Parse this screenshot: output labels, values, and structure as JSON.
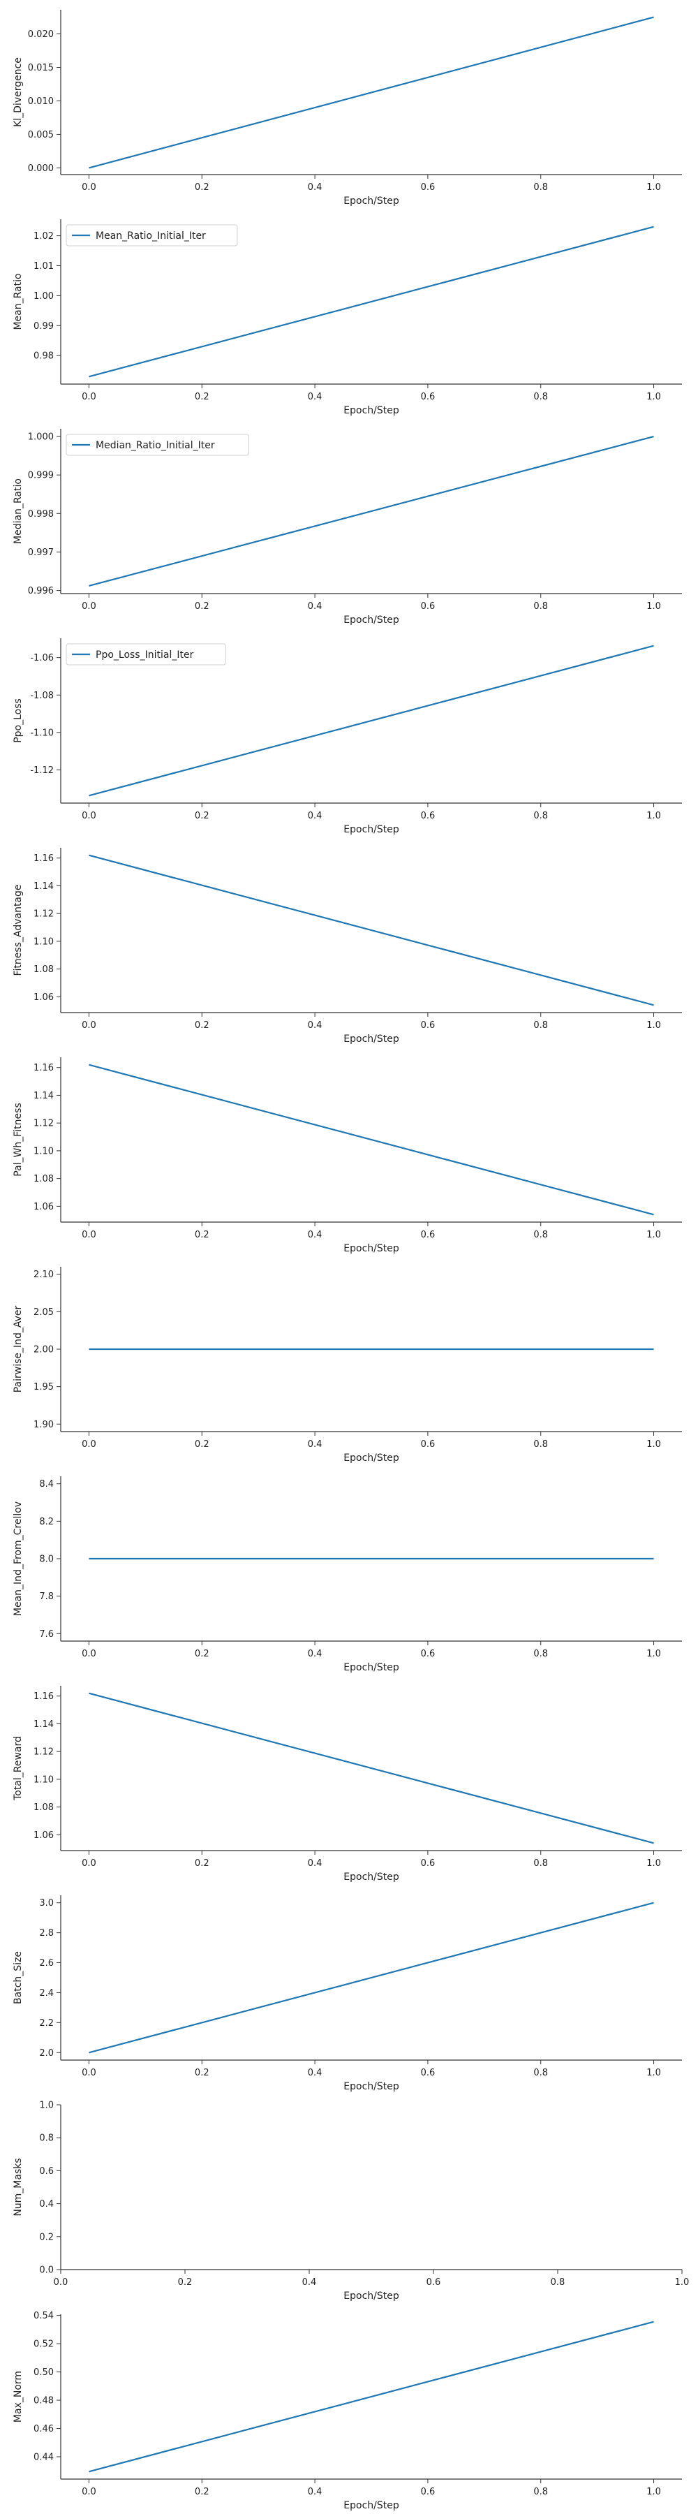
{
  "colors": {
    "line": "#1f77b4",
    "axis": "#333333",
    "legend_border": "#d0d0d0"
  },
  "chart_data": [
    {
      "type": "line",
      "xlabel": "Epoch/Step",
      "ylabel": "Kl_Divergence",
      "x": [
        0.0,
        1.0
      ],
      "series": [
        {
          "values": [
            0.0,
            0.0225
          ]
        }
      ],
      "xlim": [
        -0.05,
        1.05
      ],
      "ylim": [
        -0.001,
        0.0236
      ],
      "xticks": [
        "0.0",
        "0.2",
        "0.4",
        "0.6",
        "0.8",
        "1.0"
      ],
      "yticks": [
        "0.000",
        "0.005",
        "0.010",
        "0.015",
        "0.020"
      ],
      "grid": false,
      "legend": null
    },
    {
      "type": "line",
      "xlabel": "Epoch/Step",
      "ylabel": "Mean_Ratio",
      "x": [
        0.0,
        1.0
      ],
      "series": [
        {
          "name": "Mean_Ratio_Initial_Iter",
          "values": [
            0.973,
            1.023
          ]
        }
      ],
      "xlim": [
        -0.05,
        1.05
      ],
      "ylim": [
        0.9705,
        1.0255
      ],
      "xticks": [
        "0.0",
        "0.2",
        "0.4",
        "0.6",
        "0.8",
        "1.0"
      ],
      "yticks": [
        "0.98",
        "0.99",
        "1.00",
        "1.01",
        "1.02"
      ],
      "grid": false,
      "legend": "upper left"
    },
    {
      "type": "line",
      "xlabel": "Epoch/Step",
      "ylabel": "Median_Ratio",
      "x": [
        0.0,
        1.0
      ],
      "series": [
        {
          "name": "Median_Ratio_Initial_Iter",
          "values": [
            0.99612,
            1.0
          ]
        }
      ],
      "xlim": [
        -0.05,
        1.05
      ],
      "ylim": [
        0.99592,
        1.0002
      ],
      "xticks": [
        "0.0",
        "0.2",
        "0.4",
        "0.6",
        "0.8",
        "1.0"
      ],
      "yticks": [
        "0.996",
        "0.997",
        "0.998",
        "0.999",
        "1.000"
      ],
      "grid": false,
      "legend": "upper left"
    },
    {
      "type": "line",
      "xlabel": "Epoch/Step",
      "ylabel": "Ppo_Loss",
      "x": [
        0.0,
        1.0
      ],
      "series": [
        {
          "name": "Ppo_Loss_Initial_Iter",
          "values": [
            -1.1337,
            -1.0537
          ]
        }
      ],
      "xlim": [
        -0.05,
        1.05
      ],
      "ylim": [
        -1.1377,
        -1.0497
      ],
      "xticks": [
        "0.0",
        "0.2",
        "0.4",
        "0.6",
        "0.8",
        "1.0"
      ],
      "yticks": [
        "-1.12",
        "-1.10",
        "-1.08",
        "-1.06"
      ],
      "grid": false,
      "legend": "upper left"
    },
    {
      "type": "line",
      "xlabel": "Epoch/Step",
      "ylabel": "Fitness_Advantage",
      "x": [
        0.0,
        1.0
      ],
      "series": [
        {
          "values": [
            1.162,
            1.054
          ]
        }
      ],
      "xlim": [
        -0.05,
        1.05
      ],
      "ylim": [
        1.0486,
        1.1674
      ],
      "xticks": [
        "0.0",
        "0.2",
        "0.4",
        "0.6",
        "0.8",
        "1.0"
      ],
      "yticks": [
        "1.06",
        "1.08",
        "1.10",
        "1.12",
        "1.14",
        "1.16"
      ],
      "grid": false,
      "legend": null
    },
    {
      "type": "line",
      "xlabel": "Epoch/Step",
      "ylabel": "Pal_Wh_Fitness",
      "x": [
        0.0,
        1.0
      ],
      "series": [
        {
          "values": [
            1.162,
            1.054
          ]
        }
      ],
      "xlim": [
        -0.05,
        1.05
      ],
      "ylim": [
        1.0486,
        1.1674
      ],
      "xticks": [
        "0.0",
        "0.2",
        "0.4",
        "0.6",
        "0.8",
        "1.0"
      ],
      "yticks": [
        "1.06",
        "1.08",
        "1.10",
        "1.12",
        "1.14",
        "1.16"
      ],
      "grid": false,
      "legend": null
    },
    {
      "type": "line",
      "xlabel": "Epoch/Step",
      "ylabel": "Pairwise_Ind_Aver",
      "x": [
        0.0,
        1.0
      ],
      "series": [
        {
          "values": [
            2.0,
            2.0
          ]
        }
      ],
      "xlim": [
        -0.05,
        1.05
      ],
      "ylim": [
        1.89,
        2.11
      ],
      "xticks": [
        "0.0",
        "0.2",
        "0.4",
        "0.6",
        "0.8",
        "1.0"
      ],
      "yticks": [
        "1.90",
        "1.95",
        "2.00",
        "2.05",
        "2.10"
      ],
      "grid": false,
      "legend": null
    },
    {
      "type": "line",
      "xlabel": "Epoch/Step",
      "ylabel": "Mean_Ind_From_Crellov",
      "x": [
        0.0,
        1.0
      ],
      "series": [
        {
          "values": [
            8.0,
            8.0
          ]
        }
      ],
      "xlim": [
        -0.05,
        1.05
      ],
      "ylim": [
        7.56,
        8.44
      ],
      "xticks": [
        "0.0",
        "0.2",
        "0.4",
        "0.6",
        "0.8",
        "1.0"
      ],
      "yticks": [
        "7.6",
        "7.8",
        "8.0",
        "8.2",
        "8.4"
      ],
      "grid": false,
      "legend": null
    },
    {
      "type": "line",
      "xlabel": "Epoch/Step",
      "ylabel": "Total_Reward",
      "x": [
        0.0,
        1.0
      ],
      "series": [
        {
          "values": [
            1.162,
            1.054
          ]
        }
      ],
      "xlim": [
        -0.05,
        1.05
      ],
      "ylim": [
        1.0486,
        1.1674
      ],
      "xticks": [
        "0.0",
        "0.2",
        "0.4",
        "0.6",
        "0.8",
        "1.0"
      ],
      "yticks": [
        "1.06",
        "1.08",
        "1.10",
        "1.12",
        "1.14",
        "1.16"
      ],
      "grid": false,
      "legend": null
    },
    {
      "type": "line",
      "xlabel": "Epoch/Step",
      "ylabel": "Batch_Size",
      "x": [
        0.0,
        1.0
      ],
      "series": [
        {
          "values": [
            2.0,
            3.0
          ]
        }
      ],
      "xlim": [
        -0.05,
        1.05
      ],
      "ylim": [
        1.95,
        3.05
      ],
      "xticks": [
        "0.0",
        "0.2",
        "0.4",
        "0.6",
        "0.8",
        "1.0"
      ],
      "yticks": [
        "2.0",
        "2.2",
        "2.4",
        "2.6",
        "2.8",
        "3.0"
      ],
      "grid": false,
      "legend": null
    },
    {
      "type": "line",
      "xlabel": "Epoch/Step",
      "ylabel": "Num_Masks",
      "x": [],
      "series": [],
      "xlim": [
        0.0,
        1.0
      ],
      "ylim": [
        0.0,
        1.0
      ],
      "xticks": [
        "0.0",
        "0.2",
        "0.4",
        "0.6",
        "0.8",
        "1.0"
      ],
      "yticks": [
        "0.0",
        "0.2",
        "0.4",
        "0.6",
        "0.8",
        "1.0"
      ],
      "grid": false,
      "legend": null
    },
    {
      "type": "line",
      "xlabel": "Epoch/Step",
      "ylabel": "Max_Norm",
      "x": [
        0.0,
        1.0
      ],
      "series": [
        {
          "values": [
            0.4295,
            0.5355
          ]
        }
      ],
      "xlim": [
        -0.05,
        1.05
      ],
      "ylim": [
        0.4242,
        0.5408
      ],
      "xticks": [
        "0.0",
        "0.2",
        "0.4",
        "0.6",
        "0.8",
        "1.0"
      ],
      "yticks": [
        "0.44",
        "0.46",
        "0.48",
        "0.50",
        "0.52",
        "0.54"
      ],
      "grid": false,
      "legend": null
    }
  ]
}
